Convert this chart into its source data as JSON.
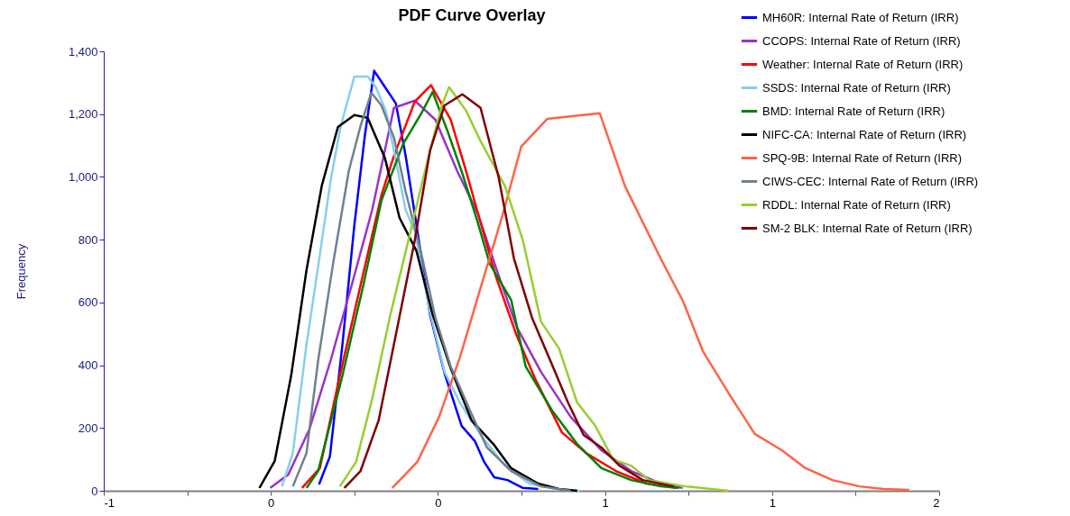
{
  "chart_data": {
    "type": "line",
    "title": "PDF Curve Overlay",
    "ylabel": "Frequency",
    "xlim": [
      -1,
      2
    ],
    "xticks": [
      {
        "value": -1,
        "label": "-1"
      },
      {
        "value": -0.7,
        "label": null
      },
      {
        "value": -0.4,
        "label": "0"
      },
      {
        "value": -0.1,
        "label": null
      },
      {
        "value": 0.2,
        "label": "0"
      },
      {
        "value": 0.5,
        "label": null
      },
      {
        "value": 0.8,
        "label": "1"
      },
      {
        "value": 1.1,
        "label": null
      },
      {
        "value": 1.4,
        "label": "1"
      },
      {
        "value": 1.7,
        "label": null
      },
      {
        "value": 2,
        "label": "2"
      }
    ],
    "ylim": [
      0,
      1400
    ],
    "yticks": [
      0,
      200,
      400,
      600,
      800,
      {
        "value": 1000,
        "label": "1,000"
      },
      {
        "value": 1200,
        "label": "1,200"
      },
      {
        "value": 1400,
        "label": "1,400"
      }
    ],
    "grid": false,
    "legend": "top right",
    "line_style": "solid",
    "series": [
      {
        "name": "MH60R: Internal Rate of Return (IRR)",
        "color": "#0000ff",
        "x": [
          -0.227,
          -0.188,
          -0.143,
          -0.1,
          -0.062,
          -0.029,
          0.01,
          0.049,
          0.084,
          0.123,
          0.172,
          0.224,
          0.285,
          0.333,
          0.366,
          0.402,
          0.45,
          0.505,
          0.56
        ],
        "values": [
          20,
          109,
          465,
          847,
          1134,
          1338,
          1286,
          1234,
          1068,
          847,
          560,
          373,
          207,
          158,
          92,
          43,
          34,
          9,
          6
        ]
      },
      {
        "name": "CCOPS: Internal Rate of Return (IRR)",
        "color": "#9933cc",
        "x": [
          -0.402,
          -0.337,
          -0.262,
          -0.185,
          -0.11,
          -0.036,
          0.042,
          0.117,
          0.191,
          0.269,
          0.343,
          0.408,
          0.483,
          0.57,
          0.677,
          0.787,
          0.894,
          1.001,
          1.079
        ],
        "values": [
          9,
          52,
          195,
          416,
          654,
          895,
          1220,
          1243,
          1182,
          1019,
          884,
          712,
          522,
          379,
          235,
          129,
          63,
          23,
          9
        ]
      },
      {
        "name": "Weather: Internal Rate of Return (IRR)",
        "color": "#ff0000",
        "x": [
          -0.288,
          -0.224,
          -0.152,
          -0.078,
          -0.003,
          0.042,
          0.117,
          0.175,
          0.246,
          0.301,
          0.353,
          0.408,
          0.483,
          0.548,
          0.645,
          0.732,
          0.839,
          0.949,
          1.056
        ],
        "values": [
          9,
          72,
          367,
          654,
          941,
          1067,
          1240,
          1292,
          1182,
          1019,
          855,
          683,
          494,
          359,
          186,
          120,
          63,
          23,
          9
        ]
      },
      {
        "name": "SSDS: Internal Rate of Return (IRR)",
        "color": "#87ceeb",
        "x": [
          -0.36,
          -0.321,
          -0.272,
          -0.224,
          -0.185,
          -0.149,
          -0.1,
          -0.052,
          -0.023,
          0.013,
          0.052,
          0.084,
          0.117,
          0.172,
          0.224,
          0.279,
          0.353,
          0.441,
          0.528,
          0.625,
          0.71
        ],
        "values": [
          14,
          120,
          465,
          752,
          990,
          1162,
          1320,
          1320,
          1286,
          1211,
          1039,
          895,
          827,
          568,
          378,
          281,
          178,
          80,
          23,
          6,
          0
        ]
      },
      {
        "name": "BMD: Internal Rate of Return (IRR)",
        "color": "#008000",
        "x": [
          -0.272,
          -0.23,
          -0.143,
          -0.068,
          -0.003,
          0.075,
          0.139,
          0.181,
          0.236,
          0.288,
          0.343,
          0.386,
          0.463,
          0.515,
          0.612,
          0.7,
          0.787,
          0.894,
          1.001,
          1.066
        ],
        "values": [
          9,
          63,
          367,
          654,
          924,
          1105,
          1200,
          1271,
          1142,
          1010,
          855,
          723,
          608,
          396,
          253,
          149,
          72,
          34,
          14,
          9
        ]
      },
      {
        "name": "NIFC-CA: Internal Rate of Return (IRR)",
        "color": "#000000",
        "x": [
          -0.441,
          -0.386,
          -0.327,
          -0.272,
          -0.217,
          -0.159,
          -0.1,
          -0.052,
          0.01,
          0.062,
          0.123,
          0.181,
          0.246,
          0.321,
          0.399,
          0.463,
          0.56,
          0.635,
          0.7
        ],
        "values": [
          9,
          95,
          367,
          703,
          972,
          1159,
          1197,
          1188,
          1059,
          870,
          764,
          562,
          390,
          224,
          149,
          72,
          23,
          6,
          0
        ]
      },
      {
        "name": "SPQ-9B: Internal Rate of Return (IRR)",
        "color": "#ff6347",
        "x": [
          0.036,
          0.126,
          0.204,
          0.279,
          0.353,
          0.431,
          0.499,
          0.593,
          0.69,
          0.781,
          0.872,
          1.001,
          1.079,
          1.153,
          1.251,
          1.338,
          1.435,
          1.52,
          1.617,
          1.714,
          1.801,
          1.892
        ],
        "values": [
          9,
          92,
          235,
          425,
          646,
          875,
          1096,
          1185,
          1194,
          1203,
          970,
          738,
          606,
          442,
          301,
          181,
          129,
          72,
          34,
          14,
          6,
          3
        ]
      },
      {
        "name": "CIWS-CEC: Internal Rate of Return (IRR)",
        "color": "#708090",
        "x": [
          -0.321,
          -0.272,
          -0.23,
          -0.175,
          -0.12,
          -0.078,
          -0.039,
          -0.003,
          0.042,
          0.084,
          0.139,
          0.191,
          0.246,
          0.311,
          0.376,
          0.463,
          0.57,
          0.677
        ],
        "values": [
          14,
          120,
          416,
          732,
          1019,
          1162,
          1268,
          1228,
          1125,
          953,
          761,
          551,
          396,
          264,
          138,
          63,
          14,
          0
        ]
      },
      {
        "name": "RDDL: Internal Rate of Return (IRR)",
        "color": "#9acd32",
        "x": [
          -0.152,
          -0.094,
          -0.036,
          0.029,
          0.094,
          0.159,
          0.214,
          0.24,
          0.301,
          0.353,
          0.441,
          0.505,
          0.57,
          0.635,
          0.7,
          0.765,
          0.829,
          0.894,
          0.959,
          1.089,
          1.244
        ],
        "values": [
          14,
          92,
          293,
          560,
          798,
          1039,
          1228,
          1286,
          1211,
          1114,
          970,
          798,
          539,
          453,
          281,
          207,
          100,
          80,
          34,
          14,
          0
        ]
      },
      {
        "name": "SM-2 BLK: Internal Rate of Return (IRR)",
        "color": "#800000",
        "x": [
          -0.136,
          -0.078,
          -0.013,
          0.052,
          0.117,
          0.172,
          0.224,
          0.288,
          0.353,
          0.418,
          0.473,
          0.538,
          0.603,
          0.667,
          0.723,
          0.787,
          0.852,
          0.936,
          1.047
        ],
        "values": [
          9,
          63,
          224,
          511,
          798,
          1085,
          1228,
          1263,
          1220,
          999,
          740,
          551,
          416,
          281,
          178,
          138,
          80,
          34,
          14
        ]
      }
    ]
  }
}
